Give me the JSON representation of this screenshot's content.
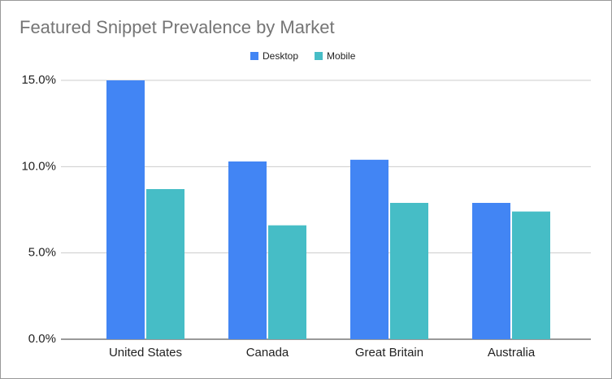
{
  "chart_data": {
    "type": "bar",
    "title": "Featured Snippet Prevalence by Market",
    "categories": [
      "United States",
      "Canada",
      "Great Britain",
      "Australia"
    ],
    "series": [
      {
        "name": "Desktop",
        "color": "#4285f4",
        "values": [
          15.0,
          10.3,
          10.4,
          7.9
        ]
      },
      {
        "name": "Mobile",
        "color": "#46bdc6",
        "values": [
          8.7,
          6.6,
          7.9,
          7.4
        ]
      }
    ],
    "ylim": [
      0,
      15
    ],
    "yticks": [
      {
        "value": 0,
        "label": "0.0%"
      },
      {
        "value": 5,
        "label": "5.0%"
      },
      {
        "value": 10,
        "label": "10.0%"
      },
      {
        "value": 15,
        "label": "15.0%"
      }
    ],
    "grid": true,
    "legend": "top"
  }
}
